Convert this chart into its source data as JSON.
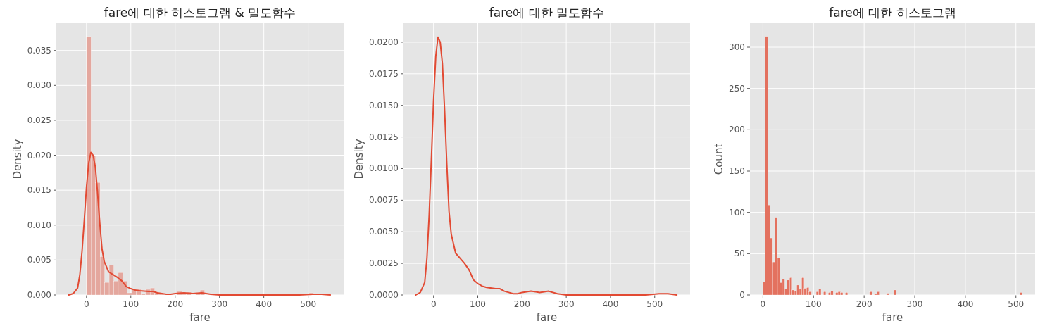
{
  "chart_data": [
    {
      "type": "histogram",
      "title": "fare에 대한 히스토그램 & 밀도함수",
      "xlabel": "fare",
      "ylabel": "Density",
      "grid": true,
      "xlim": [
        -68,
        580
      ],
      "ylim": [
        0,
        0.0389
      ],
      "xticks": [
        0,
        100,
        200,
        300,
        400,
        500
      ],
      "yticks": [
        {
          "value": 0,
          "label": "0.000"
        },
        {
          "value": 0.005,
          "label": "0.005"
        },
        {
          "value": 0.01,
          "label": "0.010"
        },
        {
          "value": 0.015,
          "label": "0.015"
        },
        {
          "value": 0.02,
          "label": "0.020"
        },
        {
          "value": 0.025,
          "label": "0.025"
        },
        {
          "value": 0.03,
          "label": "0.030"
        },
        {
          "value": 0.035,
          "label": "0.035"
        }
      ],
      "bins": [
        0,
        10.2,
        20.5,
        30.7,
        41.0,
        51.2,
        61.5,
        71.7,
        82.0,
        92.2,
        102.5,
        112.7,
        123.0,
        133.2,
        143.5,
        153.7,
        163.9,
        174.2,
        184.4,
        194.7,
        204.9,
        215.2,
        225.4,
        235.7,
        245.9,
        256.2,
        266.4,
        276.7,
        286.9,
        297.2,
        307.4,
        317.6,
        327.9,
        338.1,
        348.4,
        358.6,
        368.9,
        379.1,
        389.4,
        399.6,
        409.9,
        420.1,
        430.4,
        440.6,
        450.9,
        461.1,
        471.3,
        481.6,
        491.8,
        502.1,
        512.3
      ],
      "series": [
        {
          "type": "histogram",
          "color": "#e4a79e",
          "values": [
            0.037,
            0.0199,
            0.0161,
            0.0055,
            0.0018,
            0.0043,
            0.002,
            0.0032,
            0.002,
            0.0003,
            0.0009,
            0.0008,
            0.0002,
            0.0008,
            0.001,
            0.0003,
            0.0002,
            0,
            0,
            0,
            0.0005,
            0.0001,
            0.0004,
            0,
            0.0002,
            0.0007,
            0,
            0,
            0,
            0,
            0,
            0,
            0,
            0,
            0,
            0,
            0,
            0,
            0,
            0,
            0,
            0,
            0,
            0,
            0,
            0,
            0,
            0,
            0,
            0.0003
          ]
        },
        {
          "type": "line",
          "color": "#e24a33",
          "x": [
            -40,
            -30,
            -20,
            -15,
            -10,
            -5,
            0,
            5,
            10,
            15,
            20,
            25,
            30,
            35,
            40,
            50,
            60,
            70,
            80,
            90,
            100,
            110,
            120,
            140,
            150,
            160,
            170,
            180,
            190,
            200,
            220,
            240,
            260,
            280,
            300,
            400,
            480,
            510,
            530,
            550
          ],
          "values": [
            0,
            0.0002,
            0.001,
            0.0029,
            0.0063,
            0.0107,
            0.0154,
            0.0189,
            0.0204,
            0.02,
            0.0183,
            0.0146,
            0.0103,
            0.0066,
            0.0048,
            0.0033,
            0.0029,
            0.0025,
            0.002,
            0.0012,
            0.0009,
            0.0007,
            0.0006,
            0.0005,
            0.0005,
            0.0003,
            0.0002,
            0.0001,
            0.0001,
            0.0002,
            0.0003,
            0.0002,
            0.0003,
            0.0001,
            0,
            0,
            0,
            0.0001,
            0.0001,
            0
          ]
        }
      ]
    },
    {
      "type": "line",
      "title": "fare에 대한 밀도함수",
      "xlabel": "fare",
      "ylabel": "Density",
      "grid": true,
      "color": "#e24a33",
      "xlim": [
        -68,
        580
      ],
      "ylim": [
        0,
        0.0215
      ],
      "xticks": [
        0,
        100,
        200,
        300,
        400,
        500
      ],
      "yticks": [
        {
          "value": 0,
          "label": "0.0000"
        },
        {
          "value": 0.0025,
          "label": "0.0025"
        },
        {
          "value": 0.005,
          "label": "0.0050"
        },
        {
          "value": 0.0075,
          "label": "0.0075"
        },
        {
          "value": 0.01,
          "label": "0.0100"
        },
        {
          "value": 0.0125,
          "label": "0.0125"
        },
        {
          "value": 0.015,
          "label": "0.0150"
        },
        {
          "value": 0.0175,
          "label": "0.0175"
        },
        {
          "value": 0.02,
          "label": "0.0200"
        }
      ],
      "x": [
        -40,
        -30,
        -20,
        -15,
        -10,
        -5,
        0,
        5,
        10,
        15,
        20,
        25,
        30,
        35,
        40,
        50,
        60,
        70,
        80,
        90,
        100,
        110,
        120,
        140,
        150,
        160,
        170,
        180,
        190,
        200,
        220,
        240,
        260,
        280,
        300,
        400,
        480,
        510,
        530,
        550
      ],
      "values": [
        0,
        0.0002,
        0.001,
        0.0029,
        0.0063,
        0.0107,
        0.0154,
        0.0189,
        0.0204,
        0.02,
        0.0183,
        0.0146,
        0.0103,
        0.0066,
        0.0048,
        0.0033,
        0.0029,
        0.0025,
        0.002,
        0.0012,
        0.0009,
        0.0007,
        0.0006,
        0.0005,
        0.0005,
        0.0003,
        0.0002,
        0.0001,
        0.0001,
        0.0002,
        0.0003,
        0.0002,
        0.0003,
        0.0001,
        0,
        0,
        0,
        0.0001,
        0.0001,
        0
      ]
    },
    {
      "type": "histogram",
      "title": "fare에 대한 히스토그램",
      "xlabel": "fare",
      "ylabel": "Count",
      "grid": true,
      "color": "#e3715f",
      "xlim": [
        -25.6,
        537.9
      ],
      "ylim": [
        0,
        329
      ],
      "xticks": [
        0,
        100,
        200,
        300,
        400,
        500
      ],
      "yticks": [
        0,
        50,
        100,
        150,
        200,
        250,
        300
      ],
      "bins": [
        0,
        4.8,
        9.6,
        14.4,
        19.2,
        23.9,
        28.7,
        33.5,
        38.3,
        43.1,
        47.9,
        52.7,
        57.5,
        62.2,
        67.0,
        71.8,
        76.6,
        81.4,
        86.2,
        91.0,
        95.8,
        100.5,
        105.3,
        110.1,
        114.9,
        119.7,
        124.5,
        129.3,
        134.1,
        138.9,
        143.6,
        148.4,
        153.2,
        158.0,
        162.8,
        167.6,
        172.4,
        177.2,
        181.9,
        186.7,
        191.5,
        196.3,
        201.1,
        205.9,
        210.7,
        215.5,
        220.2,
        225.0,
        229.8,
        234.6,
        239.4,
        244.2,
        249.0,
        253.8,
        258.6,
        263.3,
        268.1,
        272.9,
        277.7,
        282.5,
        287.3,
        292.1,
        296.9,
        301.6,
        306.4,
        311.2,
        316.0,
        320.8,
        325.6,
        330.4,
        335.2,
        339.9,
        344.7,
        349.5,
        354.3,
        359.1,
        363.9,
        368.7,
        373.5,
        378.3,
        383.0,
        387.8,
        392.6,
        397.4,
        402.2,
        407.0,
        411.8,
        416.6,
        421.3,
        426.1,
        430.9,
        435.7,
        440.5,
        445.3,
        450.1,
        454.9,
        459.6,
        464.4,
        469.2,
        474.0,
        478.8,
        483.6,
        488.4,
        493.2,
        498.0,
        502.7,
        507.5,
        512.3
      ],
      "values": [
        16,
        313,
        109,
        69,
        40,
        94,
        45,
        15,
        19,
        7,
        18,
        21,
        6,
        5,
        12,
        7,
        21,
        8,
        9,
        4,
        0,
        0,
        4,
        7,
        0,
        4,
        0,
        3,
        5,
        0,
        3,
        4,
        3,
        0,
        3,
        0,
        0,
        0,
        0,
        0,
        0,
        0,
        0,
        0,
        4,
        0,
        1,
        4,
        0,
        0,
        0,
        2,
        0,
        0,
        6,
        0,
        0,
        0,
        0,
        0,
        0,
        0,
        0,
        0,
        0,
        0,
        0,
        0,
        0,
        0,
        0,
        0,
        0,
        0,
        0,
        0,
        0,
        0,
        0,
        0,
        0,
        0,
        0,
        0,
        0,
        0,
        0,
        0,
        0,
        0,
        0,
        0,
        0,
        0,
        0,
        0,
        0,
        0,
        0,
        0,
        0,
        0,
        0,
        0,
        0,
        0,
        3
      ]
    }
  ]
}
